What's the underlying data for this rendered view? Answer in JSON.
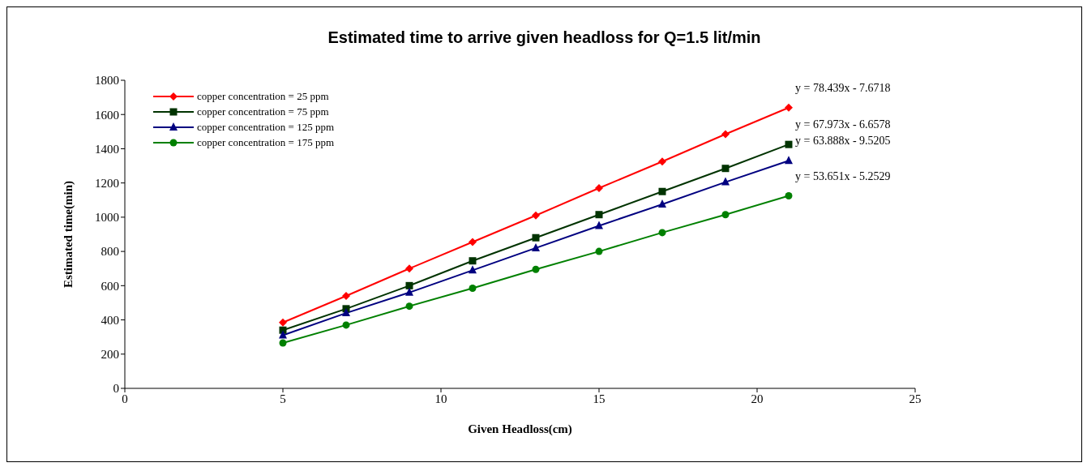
{
  "chart_data": {
    "type": "line",
    "title": "Estimated time to arrive given headloss for Q=1.5 lit/min",
    "xlabel": "Given Headloss(cm)",
    "ylabel": "Estimated time(min)",
    "x": [
      5,
      7,
      9,
      11,
      13,
      15,
      17,
      19,
      21
    ],
    "series": [
      {
        "name": "copper concentration = 25 ppm",
        "color": "#ff0000",
        "marker": "diamond",
        "values": [
          385,
          540,
          700,
          855,
          1010,
          1170,
          1325,
          1485,
          1640
        ]
      },
      {
        "name": "copper concentration = 75 ppm",
        "color": "#003300",
        "marker": "square",
        "values": [
          340,
          465,
          600,
          745,
          880,
          1015,
          1150,
          1285,
          1425
        ]
      },
      {
        "name": "copper concentration = 125 ppm",
        "color": "#000080",
        "marker": "triangle",
        "values": [
          310,
          440,
          560,
          690,
          820,
          950,
          1075,
          1205,
          1330
        ]
      },
      {
        "name": "copper concentration = 175 ppm",
        "color": "#008000",
        "marker": "circle",
        "values": [
          265,
          370,
          480,
          585,
          695,
          800,
          910,
          1015,
          1125
        ]
      }
    ],
    "xlim": [
      0,
      25
    ],
    "xticks": [
      0,
      5,
      10,
      15,
      20,
      25
    ],
    "ylim": [
      0,
      1800
    ],
    "yticks": [
      0,
      200,
      400,
      600,
      800,
      1000,
      1200,
      1400,
      1600,
      1800
    ],
    "grid": false,
    "legend": "top left",
    "line_style": "solid",
    "annotations": [
      "y = 78.439x - 7.6718",
      "y = 67.973x - 6.6578",
      "y = 63.888x - 9.5205",
      "y = 53.651x - 5.2529"
    ]
  }
}
